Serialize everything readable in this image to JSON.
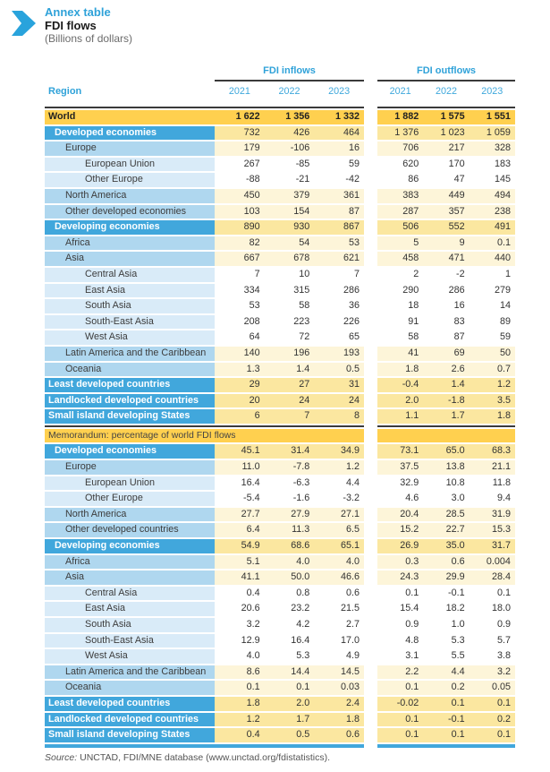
{
  "header": {
    "eyebrow": "Annex table",
    "title": "FDI flows",
    "subtitle": "(Billions of dollars)"
  },
  "table": {
    "region_header": "Region",
    "groups": [
      {
        "label": "FDI inflows"
      },
      {
        "label": "FDI outflows"
      }
    ],
    "years": [
      "2021",
      "2022",
      "2023"
    ],
    "rows": [
      {
        "label": "World",
        "level": "world",
        "in": [
          "1 622",
          "1 356",
          "1 332"
        ],
        "out": [
          "1 882",
          "1 575",
          "1 551"
        ]
      },
      {
        "label": "Developed economies",
        "level": "section",
        "in": [
          "732",
          "426",
          "464"
        ],
        "out": [
          "1 376",
          "1 023",
          "1 059"
        ]
      },
      {
        "label": "Europe",
        "level": "l1",
        "in": [
          "179",
          "-106",
          "16"
        ],
        "out": [
          "706",
          "217",
          "328"
        ]
      },
      {
        "label": "European Union",
        "level": "l2",
        "in": [
          "267",
          "-85",
          "59"
        ],
        "out": [
          "620",
          "170",
          "183"
        ]
      },
      {
        "label": "Other Europe",
        "level": "l2",
        "in": [
          "-88",
          "-21",
          "-42"
        ],
        "out": [
          "86",
          "47",
          "145"
        ]
      },
      {
        "label": "North America",
        "level": "l1",
        "in": [
          "450",
          "379",
          "361"
        ],
        "out": [
          "383",
          "449",
          "494"
        ]
      },
      {
        "label": "Other developed economies",
        "level": "l1",
        "in": [
          "103",
          "154",
          "87"
        ],
        "out": [
          "287",
          "357",
          "238"
        ]
      },
      {
        "label": "Developing economies",
        "level": "section",
        "in": [
          "890",
          "930",
          "867"
        ],
        "out": [
          "506",
          "552",
          "491"
        ]
      },
      {
        "label": "Africa",
        "level": "l1",
        "in": [
          "82",
          "54",
          "53"
        ],
        "out": [
          "5",
          "9",
          "0.1"
        ]
      },
      {
        "label": "Asia",
        "level": "l1",
        "in": [
          "667",
          "678",
          "621"
        ],
        "out": [
          "458",
          "471",
          "440"
        ]
      },
      {
        "label": "Central Asia",
        "level": "l2",
        "in": [
          "7",
          "10",
          "7"
        ],
        "out": [
          "2",
          "-2",
          "1"
        ]
      },
      {
        "label": "East Asia",
        "level": "l2",
        "in": [
          "334",
          "315",
          "286"
        ],
        "out": [
          "290",
          "286",
          "279"
        ]
      },
      {
        "label": "South Asia",
        "level": "l2",
        "in": [
          "53",
          "58",
          "36"
        ],
        "out": [
          "18",
          "16",
          "14"
        ]
      },
      {
        "label": "South-East Asia",
        "level": "l2",
        "in": [
          "208",
          "223",
          "226"
        ],
        "out": [
          "91",
          "83",
          "89"
        ]
      },
      {
        "label": "West Asia",
        "level": "l2",
        "in": [
          "64",
          "72",
          "65"
        ],
        "out": [
          "58",
          "87",
          "59"
        ]
      },
      {
        "label": "Latin America and the Caribbean",
        "level": "l1",
        "in": [
          "140",
          "196",
          "193"
        ],
        "out": [
          "41",
          "69",
          "50"
        ]
      },
      {
        "label": "Oceania",
        "level": "l1",
        "in": [
          "1.3",
          "1.4",
          "0.5"
        ],
        "out": [
          "1.8",
          "2.6",
          "0.7"
        ]
      },
      {
        "label": "Least developed countries",
        "level": "top",
        "in": [
          "29",
          "27",
          "31"
        ],
        "out": [
          "-0.4",
          "1.4",
          "1.2"
        ]
      },
      {
        "label": "Landlocked developed countries",
        "level": "top",
        "in": [
          "20",
          "24",
          "24"
        ],
        "out": [
          "2.0",
          "-1.8",
          "3.5"
        ]
      },
      {
        "label": "Small island developing States",
        "level": "top",
        "in": [
          "6",
          "7",
          "8"
        ],
        "out": [
          "1.1",
          "1.7",
          "1.8"
        ]
      },
      {
        "label": "Memorandum: percentage of world FDI flows",
        "level": "memo",
        "in": [
          "",
          "",
          ""
        ],
        "out": [
          "",
          "",
          ""
        ]
      },
      {
        "label": "Developed economies",
        "level": "section",
        "in": [
          "45.1",
          "31.4",
          "34.9"
        ],
        "out": [
          "73.1",
          "65.0",
          "68.3"
        ]
      },
      {
        "label": "Europe",
        "level": "l1",
        "in": [
          "11.0",
          "-7.8",
          "1.2"
        ],
        "out": [
          "37.5",
          "13.8",
          "21.1"
        ]
      },
      {
        "label": "European Union",
        "level": "l2",
        "in": [
          "16.4",
          "-6.3",
          "4.4"
        ],
        "out": [
          "32.9",
          "10.8",
          "11.8"
        ]
      },
      {
        "label": "Other Europe",
        "level": "l2",
        "in": [
          "-5.4",
          "-1.6",
          "-3.2"
        ],
        "out": [
          "4.6",
          "3.0",
          "9.4"
        ]
      },
      {
        "label": "North America",
        "level": "l1",
        "in": [
          "27.7",
          "27.9",
          "27.1"
        ],
        "out": [
          "20.4",
          "28.5",
          "31.9"
        ]
      },
      {
        "label": "Other developed countries",
        "level": "l1",
        "in": [
          "6.4",
          "11.3",
          "6.5"
        ],
        "out": [
          "15.2",
          "22.7",
          "15.3"
        ]
      },
      {
        "label": "Developing economies",
        "level": "section",
        "in": [
          "54.9",
          "68.6",
          "65.1"
        ],
        "out": [
          "26.9",
          "35.0",
          "31.7"
        ]
      },
      {
        "label": "Africa",
        "level": "l1",
        "in": [
          "5.1",
          "4.0",
          "4.0"
        ],
        "out": [
          "0.3",
          "0.6",
          "0.004"
        ]
      },
      {
        "label": "Asia",
        "level": "l1",
        "in": [
          "41.1",
          "50.0",
          "46.6"
        ],
        "out": [
          "24.3",
          "29.9",
          "28.4"
        ]
      },
      {
        "label": "Central Asia",
        "level": "l2",
        "in": [
          "0.4",
          "0.8",
          "0.6"
        ],
        "out": [
          "0.1",
          "-0.1",
          "0.1"
        ]
      },
      {
        "label": "East Asia",
        "level": "l2",
        "in": [
          "20.6",
          "23.2",
          "21.5"
        ],
        "out": [
          "15.4",
          "18.2",
          "18.0"
        ]
      },
      {
        "label": "South Asia",
        "level": "l2",
        "in": [
          "3.2",
          "4.2",
          "2.7"
        ],
        "out": [
          "0.9",
          "1.0",
          "0.9"
        ]
      },
      {
        "label": "South-East Asia",
        "level": "l2",
        "in": [
          "12.9",
          "16.4",
          "17.0"
        ],
        "out": [
          "4.8",
          "5.3",
          "5.7"
        ]
      },
      {
        "label": "West Asia",
        "level": "l2",
        "in": [
          "4.0",
          "5.3",
          "4.9"
        ],
        "out": [
          "3.1",
          "5.5",
          "3.8"
        ]
      },
      {
        "label": "Latin America and the Caribbean",
        "level": "l1",
        "in": [
          "8.6",
          "14.4",
          "14.5"
        ],
        "out": [
          "2.2",
          "4.4",
          "3.2"
        ]
      },
      {
        "label": "Oceania",
        "level": "l1",
        "in": [
          "0.1",
          "0.1",
          "0.03"
        ],
        "out": [
          "0.1",
          "0.2",
          "0.05"
        ]
      },
      {
        "label": "Least developed countries",
        "level": "top",
        "in": [
          "1.8",
          "2.0",
          "2.4"
        ],
        "out": [
          "-0.02",
          "0.1",
          "0.1"
        ]
      },
      {
        "label": "Landlocked developed countries",
        "level": "top",
        "in": [
          "1.2",
          "1.7",
          "1.8"
        ],
        "out": [
          "0.1",
          "-0.1",
          "0.2"
        ]
      },
      {
        "label": "Small island developing States",
        "level": "top",
        "in": [
          "0.4",
          "0.5",
          "0.6"
        ],
        "out": [
          "0.1",
          "0.1",
          "0.1"
        ]
      }
    ]
  },
  "footer": {
    "source_prefix": "Source:",
    "source_text": " UNCTAD, FDI/MNE database (www.unctad.org/fdistatistics)."
  },
  "colors": {
    "accent_blue": "#2fa2d9",
    "section_blue": "#41a7dc",
    "row_blue_light": "#afd7ef",
    "row_blue_lighter": "#d9ebf8",
    "gold": "#ffd04f",
    "gold_values": "#fbe7a0",
    "pale_yellow": "#fdf5d9",
    "rule_dark": "#3a3a3a"
  }
}
